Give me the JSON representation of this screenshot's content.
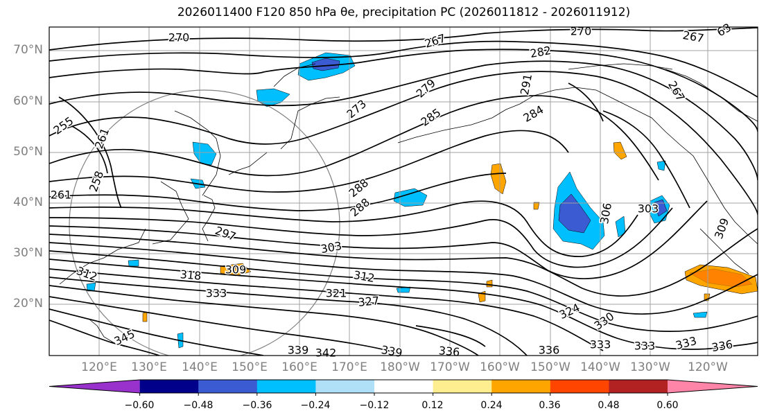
{
  "title": "2026011400 F120 850 hPa θe, precipitation PC (2026011812 - 2026011912)",
  "lat_labels": [
    "70°N",
    "60°N",
    "50°N",
    "40°N",
    "30°N",
    "20°N"
  ],
  "lon_labels": [
    "120°E",
    "130°E",
    "140°E",
    "150°E",
    "160°E",
    "170°E",
    "180°W",
    "170°W",
    "160°W",
    "150°W",
    "140°W",
    "130°W",
    "120°W"
  ],
  "contour_labels": [
    "270",
    "267",
    "270",
    "267",
    "282",
    "279",
    "273",
    "285",
    "291",
    "284",
    "288",
    "267",
    "255",
    "261",
    "261",
    "258",
    "288",
    "297",
    "303",
    "306",
    "303",
    "309",
    "318",
    "312",
    "333",
    "321",
    "327",
    "324",
    "330",
    "345",
    "339",
    "342",
    "339",
    "336",
    "336",
    "333",
    "333",
    "333",
    "336",
    "309",
    "312",
    "63"
  ],
  "colorbar": {
    "colors": [
      "#9932cc",
      "#00008b",
      "#3a5bd1",
      "#00bfff",
      "#b0e0f8",
      "#ffffff",
      "#ffee8f",
      "#ffa500",
      "#ff4500",
      "#b22222",
      "#ff85a8"
    ],
    "labels": [
      "−0.60",
      "−0.48",
      "−0.36",
      "−0.24",
      "−0.12",
      "0.12",
      "0.24",
      "0.36",
      "0.48",
      "0.60"
    ]
  }
}
